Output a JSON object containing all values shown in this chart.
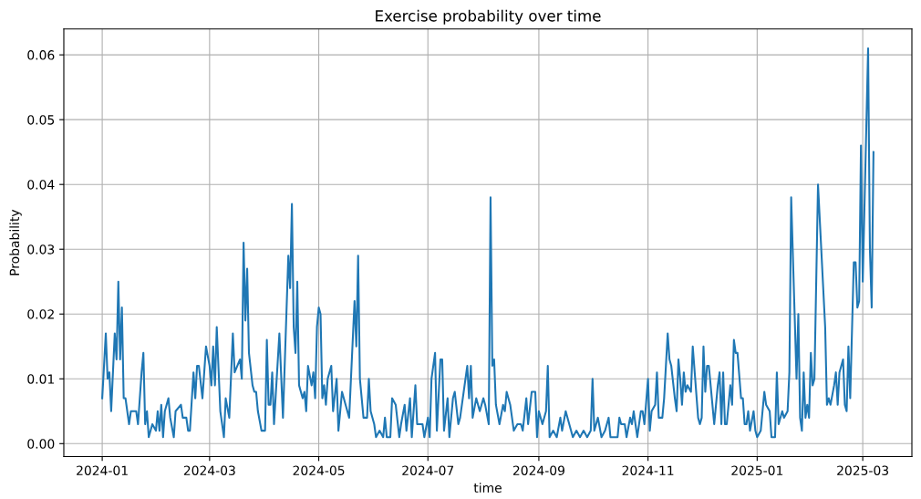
{
  "chart_data": {
    "type": "line",
    "title": "Exercise probability over time",
    "xlabel": "time",
    "ylabel": "Probability",
    "x": [
      "2024-01-01",
      "2024-01-03",
      "2024-01-04",
      "2024-01-05",
      "2024-01-06",
      "2024-01-08",
      "2024-01-09",
      "2024-01-10",
      "2024-01-11",
      "2024-01-12",
      "2024-01-13",
      "2024-01-14",
      "2024-01-16",
      "2024-01-17",
      "2024-01-20",
      "2024-01-21",
      "2024-01-23",
      "2024-01-24",
      "2024-01-25",
      "2024-01-26",
      "2024-01-27",
      "2024-01-29",
      "2024-01-31",
      "2024-02-01",
      "2024-02-02",
      "2024-02-03",
      "2024-02-04",
      "2024-02-05",
      "2024-02-07",
      "2024-02-08",
      "2024-02-10",
      "2024-02-11",
      "2024-02-14",
      "2024-02-15",
      "2024-02-17",
      "2024-02-18",
      "2024-02-19",
      "2024-02-21",
      "2024-02-22",
      "2024-02-23",
      "2024-02-24",
      "2024-02-26",
      "2024-02-28",
      "2024-03-01",
      "2024-03-02",
      "2024-03-03",
      "2024-03-04",
      "2024-03-05",
      "2024-03-07",
      "2024-03-09",
      "2024-03-10",
      "2024-03-12",
      "2024-03-14",
      "2024-03-15",
      "2024-03-18",
      "2024-03-19",
      "2024-03-20",
      "2024-03-21",
      "2024-03-22",
      "2024-03-23",
      "2024-03-25",
      "2024-03-26",
      "2024-03-27",
      "2024-03-28",
      "2024-03-30",
      "2024-04-01",
      "2024-04-02",
      "2024-04-03",
      "2024-04-04",
      "2024-04-05",
      "2024-04-06",
      "2024-04-09",
      "2024-04-11",
      "2024-04-14",
      "2024-04-15",
      "2024-04-16",
      "2024-04-17",
      "2024-04-18",
      "2024-04-19",
      "2024-04-20",
      "2024-04-22",
      "2024-04-23",
      "2024-04-24",
      "2024-04-25",
      "2024-04-27",
      "2024-04-28",
      "2024-04-29",
      "2024-04-30",
      "2024-05-01",
      "2024-05-02",
      "2024-05-03",
      "2024-05-04",
      "2024-05-05",
      "2024-05-06",
      "2024-05-08",
      "2024-05-09",
      "2024-05-11",
      "2024-05-12",
      "2024-05-14",
      "2024-05-16",
      "2024-05-18",
      "2024-05-21",
      "2024-05-22",
      "2024-05-23",
      "2024-05-24",
      "2024-05-26",
      "2024-05-28",
      "2024-05-29",
      "2024-05-30",
      "2024-06-01",
      "2024-06-02",
      "2024-06-04",
      "2024-06-06",
      "2024-06-07",
      "2024-06-08",
      "2024-06-10",
      "2024-06-11",
      "2024-06-13",
      "2024-06-15",
      "2024-06-16",
      "2024-06-18",
      "2024-06-19",
      "2024-06-21",
      "2024-06-22",
      "2024-06-24",
      "2024-06-25",
      "2024-06-28",
      "2024-06-29",
      "2024-07-01",
      "2024-07-02",
      "2024-07-03",
      "2024-07-05",
      "2024-07-06",
      "2024-07-08",
      "2024-07-09",
      "2024-07-10",
      "2024-07-12",
      "2024-07-13",
      "2024-07-15",
      "2024-07-16",
      "2024-07-18",
      "2024-07-19",
      "2024-07-23",
      "2024-07-24",
      "2024-07-25",
      "2024-07-26",
      "2024-07-28",
      "2024-07-30",
      "2024-08-01",
      "2024-08-02",
      "2024-08-04",
      "2024-08-05",
      "2024-08-06",
      "2024-08-07",
      "2024-08-08",
      "2024-08-10",
      "2024-08-12",
      "2024-08-13",
      "2024-08-14",
      "2024-08-16",
      "2024-08-18",
      "2024-08-20",
      "2024-08-22",
      "2024-08-23",
      "2024-08-25",
      "2024-08-26",
      "2024-08-28",
      "2024-08-30",
      "2024-08-31",
      "2024-09-01",
      "2024-09-03",
      "2024-09-05",
      "2024-09-06",
      "2024-09-07",
      "2024-09-09",
      "2024-09-11",
      "2024-09-13",
      "2024-09-14",
      "2024-09-16",
      "2024-09-18",
      "2024-09-20",
      "2024-09-22",
      "2024-09-24",
      "2024-09-26",
      "2024-09-28",
      "2024-09-30",
      "2024-10-01",
      "2024-10-02",
      "2024-10-04",
      "2024-10-06",
      "2024-10-08",
      "2024-10-10",
      "2024-10-11",
      "2024-10-15",
      "2024-10-16",
      "2024-10-17",
      "2024-10-19",
      "2024-10-20",
      "2024-10-22",
      "2024-10-23",
      "2024-10-24",
      "2024-10-26",
      "2024-10-28",
      "2024-10-29",
      "2024-10-30",
      "2024-11-01",
      "2024-11-02",
      "2024-11-03",
      "2024-11-05",
      "2024-11-06",
      "2024-11-07",
      "2024-11-09",
      "2024-11-10",
      "2024-11-12",
      "2024-11-13",
      "2024-11-14",
      "2024-11-16",
      "2024-11-17",
      "2024-11-18",
      "2024-11-19",
      "2024-11-20",
      "2024-11-21",
      "2024-11-22",
      "2024-11-23",
      "2024-11-25",
      "2024-11-26",
      "2024-11-29",
      "2024-11-30",
      "2024-12-01",
      "2024-12-02",
      "2024-12-03",
      "2024-12-04",
      "2024-12-05",
      "2024-12-08",
      "2024-12-10",
      "2024-12-11",
      "2024-12-12",
      "2024-12-13",
      "2024-12-14",
      "2024-12-15",
      "2024-12-17",
      "2024-12-18",
      "2024-12-19",
      "2024-12-20",
      "2024-12-21",
      "2024-12-23",
      "2024-12-24",
      "2024-12-25",
      "2024-12-26",
      "2024-12-27",
      "2024-12-28",
      "2024-12-30",
      "2024-12-31",
      "2025-01-01",
      "2025-01-03",
      "2025-01-05",
      "2025-01-06",
      "2025-01-08",
      "2025-01-09",
      "2025-01-11",
      "2025-01-12",
      "2025-01-13",
      "2025-01-15",
      "2025-01-16",
      "2025-01-18",
      "2025-01-19",
      "2025-01-20",
      "2025-01-23",
      "2025-01-24",
      "2025-01-25",
      "2025-01-26",
      "2025-01-27",
      "2025-01-28",
      "2025-01-29",
      "2025-01-30",
      "2025-01-31",
      "2025-02-01",
      "2025-02-02",
      "2025-02-04",
      "2025-02-08",
      "2025-02-09",
      "2025-02-10",
      "2025-02-11",
      "2025-02-13",
      "2025-02-14",
      "2025-02-15",
      "2025-02-16",
      "2025-02-18",
      "2025-02-19",
      "2025-02-20",
      "2025-02-21",
      "2025-02-22",
      "2025-02-24",
      "2025-02-25",
      "2025-02-26",
      "2025-02-27",
      "2025-02-28",
      "2025-03-01",
      "2025-03-04",
      "2025-03-05",
      "2025-03-06",
      "2025-03-07"
    ],
    "series": [
      {
        "color": "#1f77b4",
        "values": [
          0.007,
          0.017,
          0.01,
          0.011,
          0.005,
          0.017,
          0.013,
          0.025,
          0.013,
          0.021,
          0.007,
          0.007,
          0.003,
          0.005,
          0.005,
          0.003,
          0.011,
          0.014,
          0.003,
          0.005,
          0.001,
          0.003,
          0.002,
          0.005,
          0.002,
          0.006,
          0.001,
          0.005,
          0.007,
          0.004,
          0.001,
          0.005,
          0.006,
          0.004,
          0.004,
          0.002,
          0.002,
          0.011,
          0.007,
          0.012,
          0.012,
          0.007,
          0.015,
          0.012,
          0.009,
          0.015,
          0.009,
          0.018,
          0.005,
          0.001,
          0.007,
          0.004,
          0.017,
          0.011,
          0.013,
          0.01,
          0.031,
          0.019,
          0.027,
          0.014,
          0.009,
          0.008,
          0.008,
          0.005,
          0.002,
          0.002,
          0.016,
          0.006,
          0.006,
          0.011,
          0.003,
          0.017,
          0.004,
          0.029,
          0.024,
          0.037,
          0.018,
          0.014,
          0.025,
          0.009,
          0.007,
          0.008,
          0.005,
          0.012,
          0.009,
          0.011,
          0.007,
          0.018,
          0.021,
          0.02,
          0.007,
          0.009,
          0.006,
          0.01,
          0.012,
          0.005,
          0.01,
          0.002,
          0.008,
          0.006,
          0.004,
          0.022,
          0.015,
          0.029,
          0.01,
          0.004,
          0.004,
          0.01,
          0.005,
          0.003,
          0.001,
          0.002,
          0.001,
          0.004,
          0.001,
          0.001,
          0.007,
          0.006,
          0.001,
          0.003,
          0.006,
          0.002,
          0.007,
          0.001,
          0.009,
          0.003,
          0.003,
          0.001,
          0.004,
          0.001,
          0.01,
          0.014,
          0.002,
          0.013,
          0.013,
          0.002,
          0.007,
          0.001,
          0.007,
          0.008,
          0.003,
          0.004,
          0.012,
          0.007,
          0.012,
          0.004,
          0.007,
          0.005,
          0.007,
          0.006,
          0.003,
          0.038,
          0.012,
          0.013,
          0.006,
          0.003,
          0.006,
          0.005,
          0.008,
          0.006,
          0.002,
          0.003,
          0.003,
          0.002,
          0.007,
          0.003,
          0.008,
          0.008,
          0.001,
          0.005,
          0.003,
          0.005,
          0.012,
          0.001,
          0.002,
          0.001,
          0.004,
          0.002,
          0.005,
          0.003,
          0.001,
          0.002,
          0.001,
          0.002,
          0.001,
          0.002,
          0.01,
          0.002,
          0.004,
          0.001,
          0.002,
          0.004,
          0.001,
          0.001,
          0.004,
          0.003,
          0.003,
          0.001,
          0.004,
          0.003,
          0.005,
          0.001,
          0.005,
          0.005,
          0.003,
          0.01,
          0.002,
          0.005,
          0.006,
          0.011,
          0.004,
          0.004,
          0.007,
          0.017,
          0.013,
          0.012,
          0.007,
          0.005,
          0.013,
          0.01,
          0.006,
          0.011,
          0.008,
          0.009,
          0.008,
          0.015,
          0.004,
          0.003,
          0.004,
          0.015,
          0.008,
          0.012,
          0.012,
          0.003,
          0.009,
          0.011,
          0.003,
          0.011,
          0.003,
          0.003,
          0.009,
          0.006,
          0.016,
          0.014,
          0.014,
          0.007,
          0.007,
          0.003,
          0.003,
          0.005,
          0.002,
          0.005,
          0.002,
          0.001,
          0.002,
          0.008,
          0.006,
          0.005,
          0.001,
          0.001,
          0.011,
          0.003,
          0.005,
          0.004,
          0.005,
          0.011,
          0.038,
          0.01,
          0.02,
          0.004,
          0.002,
          0.011,
          0.004,
          0.006,
          0.004,
          0.014,
          0.009,
          0.01,
          0.04,
          0.018,
          0.006,
          0.007,
          0.006,
          0.009,
          0.011,
          0.006,
          0.011,
          0.013,
          0.006,
          0.005,
          0.015,
          0.007,
          0.028,
          0.028,
          0.021,
          0.022,
          0.046,
          0.025,
          0.061,
          0.03,
          0.021,
          0.045
        ]
      }
    ],
    "xlim": [
      "2023-12-10T13:00",
      "2025-03-28T11:00"
    ],
    "xticks": [
      {
        "value": "2024-01-01",
        "label": "2024-01"
      },
      {
        "value": "2024-03-01",
        "label": "2024-03"
      },
      {
        "value": "2024-05-01",
        "label": "2024-05"
      },
      {
        "value": "2024-07-01",
        "label": "2024-07"
      },
      {
        "value": "2024-09-01",
        "label": "2024-09"
      },
      {
        "value": "2024-11-01",
        "label": "2024-11"
      },
      {
        "value": "2025-01-01",
        "label": "2025-01"
      },
      {
        "value": "2025-03-01",
        "label": "2025-03"
      }
    ],
    "ylim": [
      -0.002,
      0.064
    ],
    "yticks": [
      {
        "value": 0,
        "label": "0.00"
      },
      {
        "value": 0.01,
        "label": "0.01"
      },
      {
        "value": 0.02,
        "label": "0.02"
      },
      {
        "value": 0.03,
        "label": "0.03"
      },
      {
        "value": 0.04,
        "label": "0.04"
      },
      {
        "value": 0.05,
        "label": "0.05"
      },
      {
        "value": 0.06,
        "label": "0.06"
      }
    ],
    "grid": true,
    "line_style": "solid",
    "marker": "none"
  }
}
